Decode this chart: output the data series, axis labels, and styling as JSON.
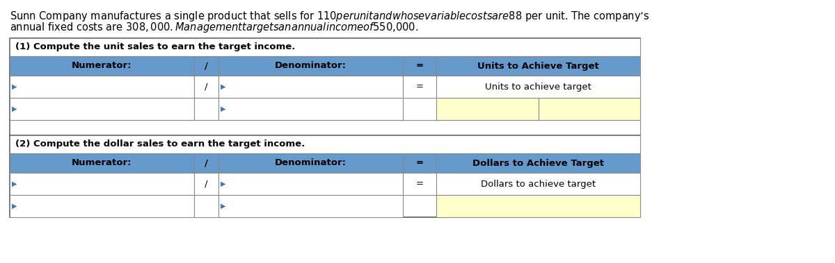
{
  "intro_line1": "Sunn Company manufactures a single product that sells for $110 per unit and whose variable costs are $88 per unit. The company’s",
  "intro_line2": "annual fixed costs are $308,000. Management targets an annual income of $550,000.",
  "sec1_header": "(1) Compute the unit sales to earn the target income.",
  "sec2_header": "(2) Compute the dollar sales to earn the target income.",
  "col_numerator": "Numerator:",
  "col_slash": "/",
  "col_denominator": "Denominator:",
  "col_equals": "=",
  "col1_title": "Units to Achieve Target",
  "col1_subtitle": "Units to achieve target",
  "col2_title": "Dollars to Achieve Target",
  "col2_subtitle": "Dollars to achieve target",
  "header_bg": "#6699CC",
  "white_bg": "#FFFFFF",
  "yellow_bg": "#FFFFCC",
  "border_color": "#888888",
  "outer_border": "#555555",
  "fig_bg": "#FFFFFF",
  "text_color": "#000000",
  "intro_fs": 10.5,
  "header_fs": 9.5,
  "cell_fs": 9.5,
  "arrow_color": "#4477AA"
}
